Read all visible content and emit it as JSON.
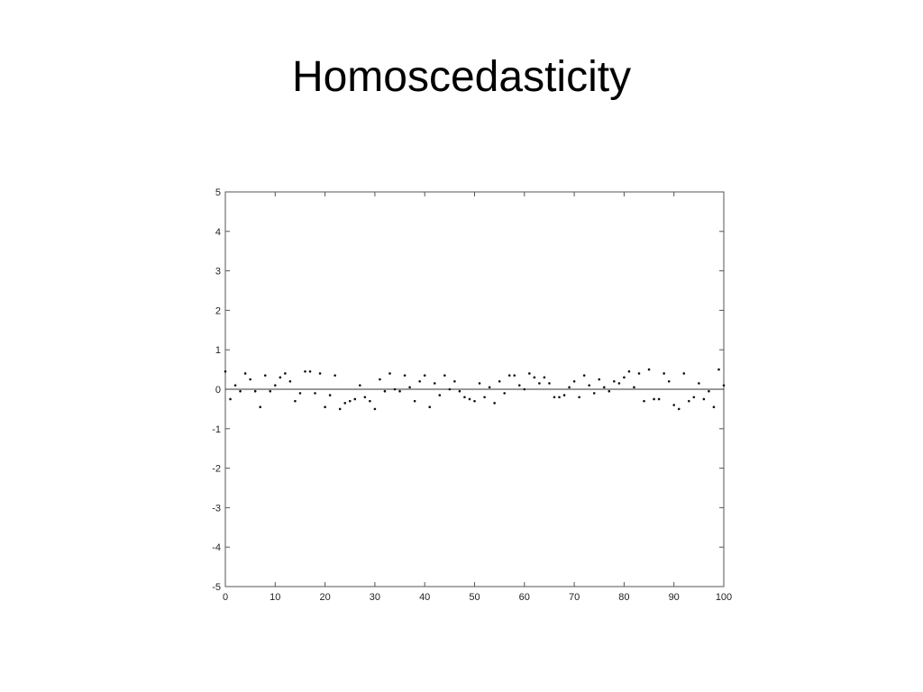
{
  "slide": {
    "title": "Homoscedasticity"
  },
  "chart_data": {
    "type": "scatter",
    "title": "",
    "xlabel": "",
    "ylabel": "",
    "xlim": [
      0,
      100
    ],
    "ylim": [
      -5,
      5
    ],
    "x_ticks": [
      0,
      10,
      20,
      30,
      40,
      50,
      60,
      70,
      80,
      90,
      100
    ],
    "y_ticks": [
      5,
      4,
      3,
      2,
      1,
      0,
      -1,
      -2,
      -3,
      -4,
      -5
    ],
    "grid": false,
    "reference_line": {
      "y": 0
    },
    "series": [
      {
        "values": [
          [
            0,
            0.45
          ],
          [
            1,
            -0.25
          ],
          [
            2,
            0.1
          ],
          [
            3,
            -0.05
          ],
          [
            4,
            0.4
          ],
          [
            5,
            0.25
          ],
          [
            6,
            -0.05
          ],
          [
            7,
            -0.45
          ],
          [
            8,
            0.35
          ],
          [
            9,
            -0.05
          ],
          [
            10,
            0.1
          ],
          [
            11,
            0.3
          ],
          [
            12,
            0.4
          ],
          [
            13,
            0.2
          ],
          [
            14,
            -0.3
          ],
          [
            15,
            -0.1
          ],
          [
            16,
            0.45
          ],
          [
            17,
            0.45
          ],
          [
            18,
            -0.1
          ],
          [
            19,
            0.4
          ],
          [
            20,
            -0.45
          ],
          [
            21,
            -0.15
          ],
          [
            22,
            0.35
          ],
          [
            23,
            -0.5
          ],
          [
            24,
            -0.35
          ],
          [
            25,
            -0.3
          ],
          [
            26,
            -0.25
          ],
          [
            27,
            0.1
          ],
          [
            28,
            -0.2
          ],
          [
            29,
            -0.3
          ],
          [
            30,
            -0.5
          ],
          [
            31,
            0.25
          ],
          [
            32,
            -0.05
          ],
          [
            33,
            0.4
          ],
          [
            34,
            0.0
          ],
          [
            35,
            -0.05
          ],
          [
            36,
            0.35
          ],
          [
            37,
            0.05
          ],
          [
            38,
            -0.3
          ],
          [
            39,
            0.2
          ],
          [
            40,
            0.35
          ],
          [
            41,
            -0.45
          ],
          [
            42,
            0.15
          ],
          [
            43,
            -0.15
          ],
          [
            44,
            0.35
          ],
          [
            45,
            0.0
          ],
          [
            46,
            0.2
          ],
          [
            47,
            -0.05
          ],
          [
            48,
            -0.2
          ],
          [
            49,
            -0.25
          ],
          [
            50,
            -0.3
          ],
          [
            51,
            0.15
          ],
          [
            52,
            -0.2
          ],
          [
            53,
            0.05
          ],
          [
            54,
            -0.35
          ],
          [
            55,
            0.2
          ],
          [
            56,
            -0.1
          ],
          [
            57,
            0.35
          ],
          [
            58,
            0.35
          ],
          [
            59,
            0.1
          ],
          [
            60,
            0.0
          ],
          [
            61,
            0.4
          ],
          [
            62,
            0.3
          ],
          [
            63,
            0.15
          ],
          [
            64,
            0.3
          ],
          [
            65,
            0.15
          ],
          [
            66,
            -0.2
          ],
          [
            67,
            -0.2
          ],
          [
            68,
            -0.15
          ],
          [
            69,
            0.05
          ],
          [
            70,
            0.2
          ],
          [
            71,
            -0.2
          ],
          [
            72,
            0.35
          ],
          [
            73,
            0.1
          ],
          [
            74,
            -0.1
          ],
          [
            75,
            0.25
          ],
          [
            76,
            0.05
          ],
          [
            77,
            -0.05
          ],
          [
            78,
            0.2
          ],
          [
            79,
            0.15
          ],
          [
            80,
            0.3
          ],
          [
            81,
            0.45
          ],
          [
            82,
            0.05
          ],
          [
            83,
            0.4
          ],
          [
            84,
            -0.3
          ],
          [
            85,
            0.5
          ],
          [
            86,
            -0.25
          ],
          [
            87,
            -0.25
          ],
          [
            88,
            0.4
          ],
          [
            89,
            0.2
          ],
          [
            90,
            -0.4
          ],
          [
            91,
            -0.5
          ],
          [
            92,
            0.4
          ],
          [
            93,
            -0.3
          ],
          [
            94,
            -0.2
          ],
          [
            95,
            0.15
          ],
          [
            96,
            -0.25
          ],
          [
            97,
            -0.05
          ],
          [
            98,
            -0.45
          ],
          [
            99,
            0.5
          ],
          [
            100,
            0.1
          ]
        ]
      }
    ]
  },
  "colors": {
    "axis": "#555555",
    "marker": "#111111",
    "reference_line": "#333333",
    "background": "#ffffff"
  }
}
